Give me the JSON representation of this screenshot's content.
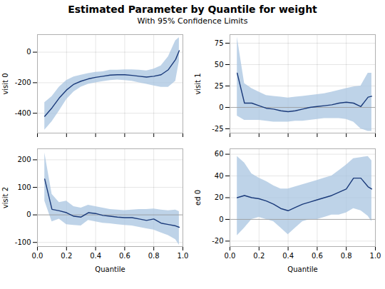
{
  "title": "Estimated Parameter by Quantile for weight",
  "subtitle": "With 95% Confidence Limits",
  "chart_data": [
    {
      "type": "line",
      "ylabel": "visit 0",
      "color": "#1a3a7a",
      "band_color": "#a8c4e0",
      "grid": true,
      "tick_labels": "y",
      "x": [
        0.05,
        0.1,
        0.15,
        0.2,
        0.25,
        0.3,
        0.35,
        0.4,
        0.45,
        0.5,
        0.55,
        0.6,
        0.65,
        0.7,
        0.75,
        0.8,
        0.85,
        0.9,
        0.95,
        0.975
      ],
      "values": [
        -420,
        -365,
        -300,
        -248,
        -210,
        -190,
        -175,
        -165,
        -158,
        -150,
        -148,
        -148,
        -152,
        -158,
        -163,
        -158,
        -148,
        -115,
        -48,
        10
      ],
      "lower": [
        -510,
        -455,
        -385,
        -310,
        -260,
        -228,
        -210,
        -200,
        -192,
        -185,
        -182,
        -185,
        -190,
        -200,
        -210,
        -220,
        -230,
        -230,
        -190,
        -60
      ],
      "upper": [
        -330,
        -290,
        -228,
        -185,
        -162,
        -150,
        -140,
        -132,
        -128,
        -118,
        -118,
        -115,
        -115,
        -118,
        -122,
        -110,
        -90,
        -30,
        75,
        95
      ],
      "xlim": [
        0,
        1
      ],
      "xticks": [
        {
          "value": 0,
          "label": "0.0"
        },
        0.2,
        0.4,
        0.6,
        0.8,
        {
          "value": 1,
          "label": "1.0"
        }
      ],
      "ylim": [
        -530,
        115
      ],
      "yticks": [
        -400,
        -200,
        0
      ]
    },
    {
      "type": "line",
      "ylabel": "visit 1",
      "color": "#1a3a7a",
      "band_color": "#a8c4e0",
      "grid": true,
      "tick_labels": "y",
      "hline": 0,
      "x": [
        0.05,
        0.1,
        0.15,
        0.2,
        0.25,
        0.3,
        0.35,
        0.4,
        0.45,
        0.5,
        0.55,
        0.6,
        0.65,
        0.7,
        0.75,
        0.8,
        0.85,
        0.9,
        0.95,
        0.975
      ],
      "values": [
        40,
        5,
        5,
        2,
        -1,
        -2,
        -4,
        -5,
        -4,
        -2,
        0,
        1,
        2,
        3,
        5,
        6,
        5,
        1,
        12,
        13
      ],
      "lower": [
        -10,
        -15,
        -15,
        -15,
        -16,
        -17,
        -17,
        -17,
        -16,
        -16,
        -15,
        -14,
        -13,
        -13,
        -13,
        -14,
        -17,
        -25,
        -28,
        -28
      ],
      "upper": [
        82,
        28,
        22,
        18,
        14,
        13,
        12,
        11,
        12,
        13,
        14,
        15,
        16,
        18,
        20,
        22,
        24,
        25,
        40,
        40
      ],
      "xlim": [
        0,
        1
      ],
      "xticks": [
        {
          "value": 0,
          "label": "0.0"
        },
        0.2,
        0.4,
        0.6,
        0.8,
        {
          "value": 1,
          "label": "1.0"
        }
      ],
      "ylim": [
        -30,
        85
      ],
      "yticks": [
        -25,
        0,
        25,
        50,
        75
      ]
    },
    {
      "type": "line",
      "ylabel": "visit 2",
      "xlabel": "Quantile",
      "color": "#1a3a7a",
      "band_color": "#a8c4e0",
      "grid": true,
      "hline": 0,
      "x": [
        0.05,
        0.1,
        0.15,
        0.2,
        0.25,
        0.3,
        0.35,
        0.4,
        0.45,
        0.5,
        0.55,
        0.6,
        0.65,
        0.7,
        0.75,
        0.8,
        0.85,
        0.9,
        0.95,
        0.975
      ],
      "values": [
        130,
        20,
        15,
        8,
        -5,
        -8,
        8,
        5,
        -2,
        -5,
        -8,
        -10,
        -10,
        -15,
        -20,
        -15,
        -30,
        -35,
        -40,
        -45
      ],
      "lower": [
        50,
        -25,
        -15,
        -35,
        -38,
        -40,
        -20,
        -25,
        -30,
        -32,
        -35,
        -38,
        -40,
        -45,
        -50,
        -55,
        -65,
        -75,
        -90,
        -110
      ],
      "upper": [
        225,
        75,
        45,
        50,
        30,
        25,
        35,
        30,
        25,
        20,
        18,
        16,
        18,
        20,
        20,
        22,
        18,
        15,
        18,
        12
      ],
      "xlim": [
        0,
        1
      ],
      "xticks": [
        {
          "value": 0,
          "label": "0.0"
        },
        0.2,
        0.4,
        0.6,
        0.8,
        {
          "value": 1,
          "label": "1.0"
        }
      ],
      "ylim": [
        -115,
        240
      ],
      "yticks": [
        -100,
        0,
        100,
        200
      ]
    },
    {
      "type": "line",
      "ylabel": "ed 0",
      "xlabel": "Quantile",
      "color": "#1a3a7a",
      "band_color": "#a8c4e0",
      "grid": true,
      "hline": 0,
      "x": [
        0.05,
        0.1,
        0.15,
        0.2,
        0.25,
        0.3,
        0.35,
        0.4,
        0.45,
        0.5,
        0.55,
        0.6,
        0.65,
        0.7,
        0.75,
        0.8,
        0.85,
        0.9,
        0.95,
        0.975
      ],
      "values": [
        20,
        22,
        20,
        19,
        17,
        14,
        10,
        8,
        11,
        14,
        16,
        18,
        20,
        22,
        25,
        28,
        38,
        38,
        30,
        28
      ],
      "lower": [
        -15,
        -8,
        0,
        2,
        0,
        -2,
        -8,
        -14,
        -8,
        -2,
        0,
        0,
        2,
        4,
        4,
        6,
        10,
        8,
        3,
        -2
      ],
      "upper": [
        58,
        52,
        42,
        38,
        35,
        31,
        28,
        28,
        30,
        32,
        34,
        36,
        38,
        40,
        45,
        50,
        56,
        57,
        58,
        54
      ],
      "xlim": [
        0,
        1
      ],
      "xticks": [
        {
          "value": 0,
          "label": "0.0"
        },
        0.2,
        0.4,
        0.6,
        0.8,
        {
          "value": 1,
          "label": "1.0"
        }
      ],
      "ylim": [
        -25,
        65
      ],
      "yticks": [
        -20,
        0,
        20,
        40,
        60
      ]
    }
  ]
}
